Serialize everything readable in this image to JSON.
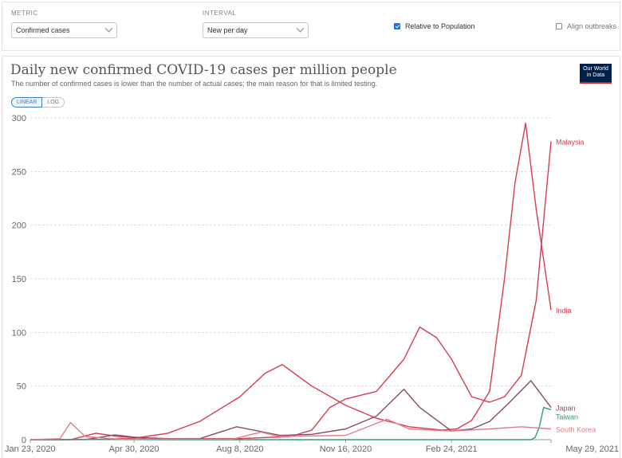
{
  "controls": {
    "metric_label": "METRIC",
    "metric_value": "Confirmed cases",
    "interval_label": "INTERVAL",
    "interval_value": "New per day",
    "relative_label": "Relative to Population",
    "relative_checked": true,
    "align_label": "Align outbreaks",
    "align_checked": false
  },
  "logo": {
    "line1": "Our World",
    "line2": "in Data",
    "bg": "#002147",
    "accent": "#ce261e"
  },
  "scale": {
    "linear": "LINEAR",
    "log": "LOG",
    "active": "linear"
  },
  "chart_data": {
    "type": "line",
    "title": "Daily new confirmed COVID-19 cases per million people",
    "subtitle": "The number of confirmed cases is lower than the number of actual cases; the main reason for that is limited testing.",
    "xlabel": "",
    "ylabel": "",
    "ylim": [
      0,
      300
    ],
    "yticks": [
      0,
      50,
      100,
      150,
      200,
      250,
      300
    ],
    "xlim": [
      "2020-01-23",
      "2021-05-29"
    ],
    "xtick_labels": [
      "Jan 23, 2020",
      "Apr 30, 2020",
      "Aug 8, 2020",
      "Nov 16, 2020",
      "Feb 24, 2021",
      "May 29, 2021"
    ],
    "xtick_dates": [
      "2020-01-23",
      "2020-04-30",
      "2020-08-08",
      "2020-11-16",
      "2021-02-24",
      "2021-05-29"
    ],
    "grid": true,
    "legend": "end-of-line labels",
    "series": [
      {
        "name": "Malaysia",
        "color": "#d73c50",
        "x": [
          "2020-01-23",
          "2020-03-01",
          "2020-03-25",
          "2020-04-15",
          "2020-06-01",
          "2020-08-08",
          "2020-09-25",
          "2020-10-15",
          "2020-11-01",
          "2020-11-16",
          "2020-12-15",
          "2021-01-10",
          "2021-01-25",
          "2021-02-10",
          "2021-02-24",
          "2021-03-15",
          "2021-04-01",
          "2021-04-15",
          "2021-05-01",
          "2021-05-15",
          "2021-05-29"
        ],
        "y": [
          0,
          0,
          6,
          3,
          1,
          1,
          3,
          9,
          30,
          38,
          45,
          75,
          105,
          95,
          75,
          40,
          35,
          40,
          60,
          130,
          278
        ]
      },
      {
        "name": "India",
        "color": "#d73c50",
        "x": [
          "2020-01-23",
          "2020-04-01",
          "2020-05-01",
          "2020-06-01",
          "2020-07-01",
          "2020-08-08",
          "2020-09-01",
          "2020-09-17",
          "2020-10-15",
          "2020-11-16",
          "2020-12-15",
          "2021-01-15",
          "2021-02-15",
          "2021-03-01",
          "2021-03-15",
          "2021-04-01",
          "2021-04-15",
          "2021-04-25",
          "2021-05-05",
          "2021-05-15",
          "2021-05-29"
        ],
        "y": [
          0,
          0.2,
          1.5,
          6,
          17,
          40,
          62,
          70,
          50,
          32,
          20,
          12,
          9,
          10,
          18,
          45,
          150,
          240,
          295,
          215,
          121
        ]
      },
      {
        "name": "Japan",
        "color": "#8b4a6b",
        "x": [
          "2020-01-23",
          "2020-03-15",
          "2020-04-12",
          "2020-05-15",
          "2020-07-01",
          "2020-08-05",
          "2020-09-15",
          "2020-10-15",
          "2020-11-16",
          "2020-12-15",
          "2021-01-10",
          "2021-01-25",
          "2021-02-24",
          "2021-03-15",
          "2021-04-01",
          "2021-04-20",
          "2021-05-10",
          "2021-05-29"
        ],
        "y": [
          0,
          0.1,
          4.5,
          0.5,
          1,
          12,
          4,
          5,
          10,
          22,
          47,
          30,
          8,
          10,
          17,
          35,
          55,
          30
        ]
      },
      {
        "name": "Taiwan",
        "color": "#2f9e78",
        "x": [
          "2020-01-23",
          "2020-04-01",
          "2020-06-01",
          "2021-05-10",
          "2021-05-14",
          "2021-05-18",
          "2021-05-22",
          "2021-05-29"
        ],
        "y": [
          0,
          0.4,
          0,
          0,
          2,
          12,
          30,
          28
        ]
      },
      {
        "name": "South Korea",
        "color": "#e27b8a",
        "x": [
          "2020-01-23",
          "2020-02-20",
          "2020-03-01",
          "2020-03-15",
          "2020-04-15",
          "2020-08-01",
          "2020-08-28",
          "2020-09-15",
          "2020-11-16",
          "2020-12-25",
          "2021-01-15",
          "2021-02-24",
          "2021-04-01",
          "2021-05-01",
          "2021-05-29"
        ],
        "y": [
          0,
          1,
          16,
          3,
          0.5,
          0.5,
          7,
          3,
          4,
          19,
          10,
          8,
          10,
          12,
          10
        ]
      }
    ]
  }
}
